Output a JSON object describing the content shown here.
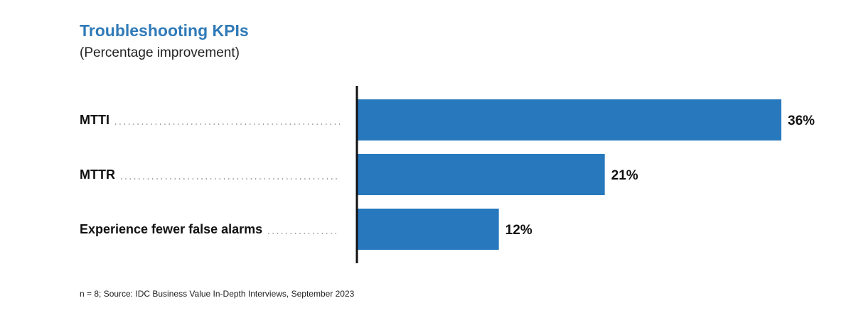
{
  "title": "Troubleshooting KPIs",
  "subtitle": "(Percentage improvement)",
  "source": "n = 8; Source: IDC Business Value In-Depth Interviews, September 2023",
  "colors": {
    "title": "#2f7ab8",
    "bar": "#2878bd",
    "axis": "#111111",
    "leader": "#666666"
  },
  "chart_data": {
    "type": "bar",
    "orientation": "horizontal",
    "title": "Troubleshooting KPIs",
    "subtitle": "(Percentage improvement)",
    "categories": [
      "MTTI",
      "MTTR",
      "Experience fewer false alarms"
    ],
    "values": [
      36,
      21,
      12
    ],
    "value_labels": [
      "36%",
      "21%",
      "12%"
    ],
    "xlim": [
      0,
      36
    ],
    "grid": false,
    "legend": "none"
  }
}
